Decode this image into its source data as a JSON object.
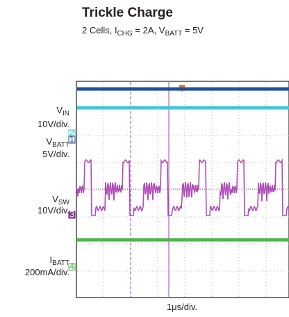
{
  "header": {
    "title": "Trickle Charge",
    "subtitle": [
      "2 Cells, I",
      "CHG",
      " = 2A, V",
      "BATT",
      " = 5V"
    ]
  },
  "channels": [
    {
      "name": "V",
      "sub": "IN",
      "scale": "10V/div."
    },
    {
      "name": "V",
      "sub": "BATT",
      "scale": "5V/div."
    },
    {
      "name": "V",
      "sub": "SW",
      "scale": "10V/div."
    },
    {
      "name": "I",
      "sub": "BATT",
      "scale": "200mA/div."
    }
  ],
  "markers": [
    "2",
    "1",
    "3",
    "4"
  ],
  "x_label": "1μs/div."
}
